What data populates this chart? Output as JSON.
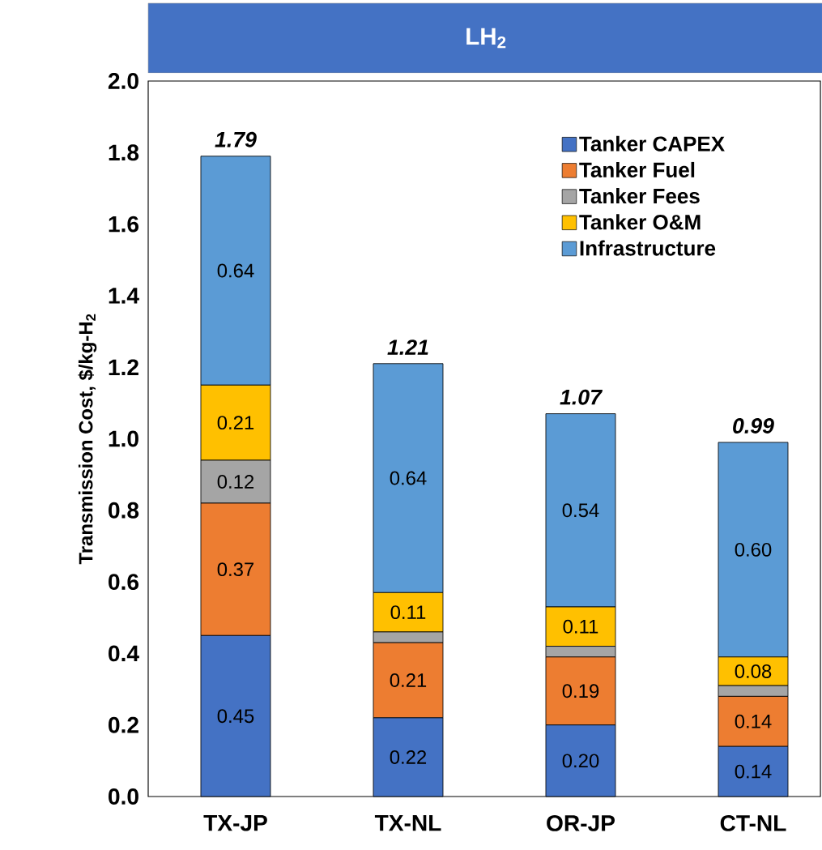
{
  "chart_data": {
    "type": "bar",
    "stacked": true,
    "title": "LH$_{2}$",
    "ylabel": "Transmission  Cost, $/kg-H$_{2}$",
    "categories": [
      "TX-JP",
      "TX-NL",
      "OR-JP",
      "CT-NL"
    ],
    "series": [
      {
        "name": "Tanker CAPEX",
        "color": "#4472c4",
        "values": [
          0.45,
          0.22,
          0.2,
          0.14
        ],
        "value_labels": [
          "0.45",
          "0.22",
          "0.20",
          "0.14"
        ]
      },
      {
        "name": "Tanker Fuel",
        "color": "#ed7d31",
        "values": [
          0.37,
          0.21,
          0.19,
          0.14
        ],
        "value_labels": [
          "0.37",
          "0.21",
          "0.19",
          "0.14"
        ]
      },
      {
        "name": "Tanker Fees",
        "color": "#a5a5a5",
        "values": [
          0.12,
          0.03,
          0.03,
          0.03
        ],
        "value_labels": [
          "0.12",
          null,
          null,
          null
        ]
      },
      {
        "name": "Tanker O&M",
        "color": "#ffc000",
        "values": [
          0.21,
          0.11,
          0.11,
          0.08
        ],
        "value_labels": [
          "0.21",
          "0.11",
          "0.11",
          "0.08"
        ]
      },
      {
        "name": "Infrastructure",
        "color": "#5b9bd5",
        "values": [
          0.64,
          0.64,
          0.54,
          0.6
        ],
        "value_labels": [
          "0.64",
          "0.64",
          "0.54",
          "0.60"
        ]
      }
    ],
    "totals": [
      "**1.79**",
      "**1.21**",
      "**1.07**",
      "**0.99**"
    ],
    "ylim": [
      0,
      2.0
    ],
    "yticks": [
      {
        "value": 0,
        "label": "0.0"
      },
      {
        "value": 0.2,
        "label": "0.2"
      },
      {
        "value": 0.4,
        "label": "0.4"
      },
      {
        "value": 0.6,
        "label": "0.6"
      },
      {
        "value": 0.8,
        "label": "0.8"
      },
      {
        "value": 1.0,
        "label": "1.0"
      },
      {
        "value": 1.2,
        "label": "1.2"
      },
      {
        "value": 1.4,
        "label": "1.4"
      },
      {
        "value": 1.6,
        "label": "1.6"
      },
      {
        "value": 1.8,
        "label": "1.8"
      },
      {
        "value": 2.0,
        "label": "2.0"
      }
    ],
    "grid": false,
    "legend": "top right"
  }
}
